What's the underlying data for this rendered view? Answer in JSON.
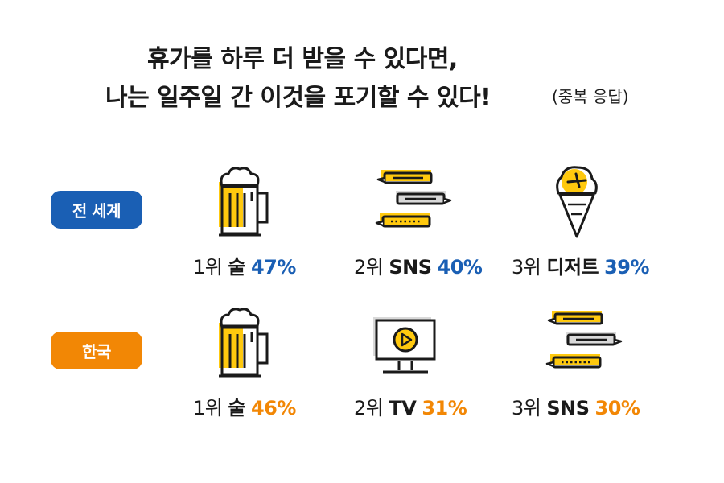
{
  "title": {
    "line1": "휴가를 하루 더 받을 수 있다면,",
    "line2": "나는 일주일 간 이것을 포기할 수 있다!",
    "note": "(중복 응답)"
  },
  "colors": {
    "world": "#1a5fb4",
    "korea": "#f28705",
    "icon_yellow": "#ffc90e",
    "icon_gray": "#d9d9d9",
    "outline": "#1a1a1a"
  },
  "chart_data": {
    "type": "table",
    "unit": "%",
    "groups": [
      {
        "name": "전 세계",
        "items": [
          {
            "rank": "1위",
            "label": "술",
            "value": 47,
            "value_text": "47%",
            "icon": "beer-mug-icon"
          },
          {
            "rank": "2위",
            "label": "SNS",
            "value": 40,
            "value_text": "40%",
            "icon": "chat-bubbles-icon"
          },
          {
            "rank": "3위",
            "label": "디저트",
            "value": 39,
            "value_text": "39%",
            "icon": "ice-cream-cone-icon"
          }
        ]
      },
      {
        "name": "한국",
        "items": [
          {
            "rank": "1위",
            "label": "술",
            "value": 46,
            "value_text": "46%",
            "icon": "beer-mug-icon"
          },
          {
            "rank": "2위",
            "label": "TV",
            "value": 31,
            "value_text": "31%",
            "icon": "tv-play-icon"
          },
          {
            "rank": "3위",
            "label": "SNS",
            "value": 30,
            "value_text": "30%",
            "icon": "chat-bubbles-icon"
          }
        ]
      }
    ]
  }
}
